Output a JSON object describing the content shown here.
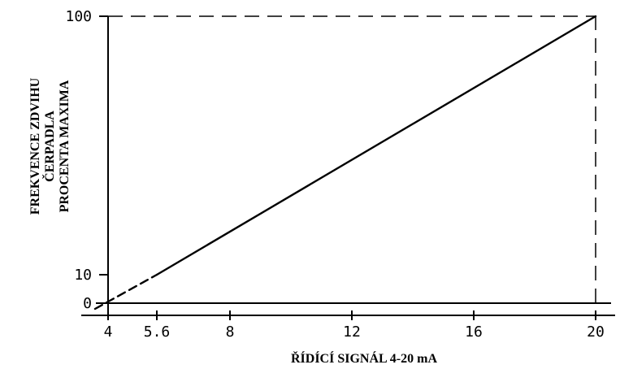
{
  "chart_data": {
    "type": "line",
    "xlabel": "ŘÍDÍCÍ SIGNÁL 4-20 mA",
    "ylabel_lines": [
      "FREKVENCE ZDVIHU",
      "ČERPADLA",
      "PROCENTA MAXIMA"
    ],
    "x_ticks": [
      4,
      5.6,
      8,
      12,
      16,
      20
    ],
    "x_tick_labels": [
      "4",
      "5.6",
      "8",
      "12",
      "16",
      "20"
    ],
    "y_ticks": [
      0,
      10,
      100
    ],
    "y_tick_labels": [
      "0",
      "10",
      "100"
    ],
    "xlim": [
      4,
      20
    ],
    "series": [
      {
        "style": "solid",
        "x": [
          5.6,
          20
        ],
        "y": [
          10,
          100
        ]
      },
      {
        "style": "dashed",
        "x": [
          4,
          5.6
        ],
        "y": [
          0,
          10
        ]
      }
    ],
    "reference_lines": [
      {
        "style": "dashed",
        "x": [
          4,
          20
        ],
        "y": [
          100,
          100
        ]
      },
      {
        "style": "dashed",
        "x": [
          20,
          20
        ],
        "y": [
          0,
          100
        ]
      }
    ],
    "grid": false
  }
}
